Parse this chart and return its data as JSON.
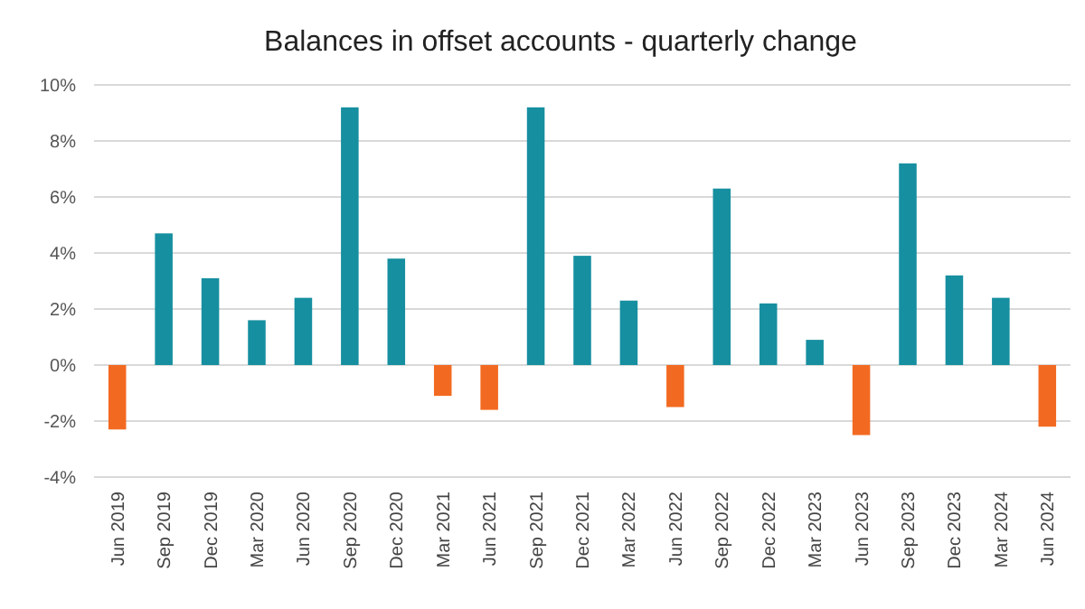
{
  "chart_data": {
    "type": "bar",
    "title": "Balances in offset accounts - quarterly change",
    "categories": [
      "Jun 2019",
      "Sep 2019",
      "Dec 2019",
      "Mar 2020",
      "Jun 2020",
      "Sep 2020",
      "Dec 2020",
      "Mar 2021",
      "Jun 2021",
      "Sep 2021",
      "Dec 2021",
      "Mar 2022",
      "Jun 2022",
      "Sep 2022",
      "Dec 2022",
      "Mar 2023",
      "Jun 2023",
      "Sep 2023",
      "Dec 2023",
      "Mar 2024",
      "Jun 2024"
    ],
    "values": [
      -2.3,
      4.7,
      3.1,
      1.6,
      2.4,
      9.2,
      3.8,
      -1.1,
      -1.6,
      9.2,
      3.9,
      2.3,
      -1.5,
      6.3,
      2.2,
      0.9,
      -2.5,
      7.2,
      3.2,
      2.4,
      -2.2
    ],
    "colors": [
      "#f26a21",
      "#168fa0",
      "#168fa0",
      "#168fa0",
      "#168fa0",
      "#168fa0",
      "#168fa0",
      "#f26a21",
      "#f26a21",
      "#168fa0",
      "#168fa0",
      "#168fa0",
      "#f26a21",
      "#168fa0",
      "#168fa0",
      "#168fa0",
      "#f26a21",
      "#168fa0",
      "#168fa0",
      "#168fa0",
      "#f26a21"
    ],
    "ylim": [
      -4,
      10
    ],
    "yticks": [
      {
        "value": -4,
        "label": "-4%"
      },
      {
        "value": -2,
        "label": "-2%"
      },
      {
        "value": 0,
        "label": "0%"
      },
      {
        "value": 2,
        "label": "2%"
      },
      {
        "value": 4,
        "label": "4%"
      },
      {
        "value": 6,
        "label": "6%"
      },
      {
        "value": 8,
        "label": "8%"
      },
      {
        "value": 10,
        "label": "10%"
      }
    ],
    "grid": "y"
  }
}
